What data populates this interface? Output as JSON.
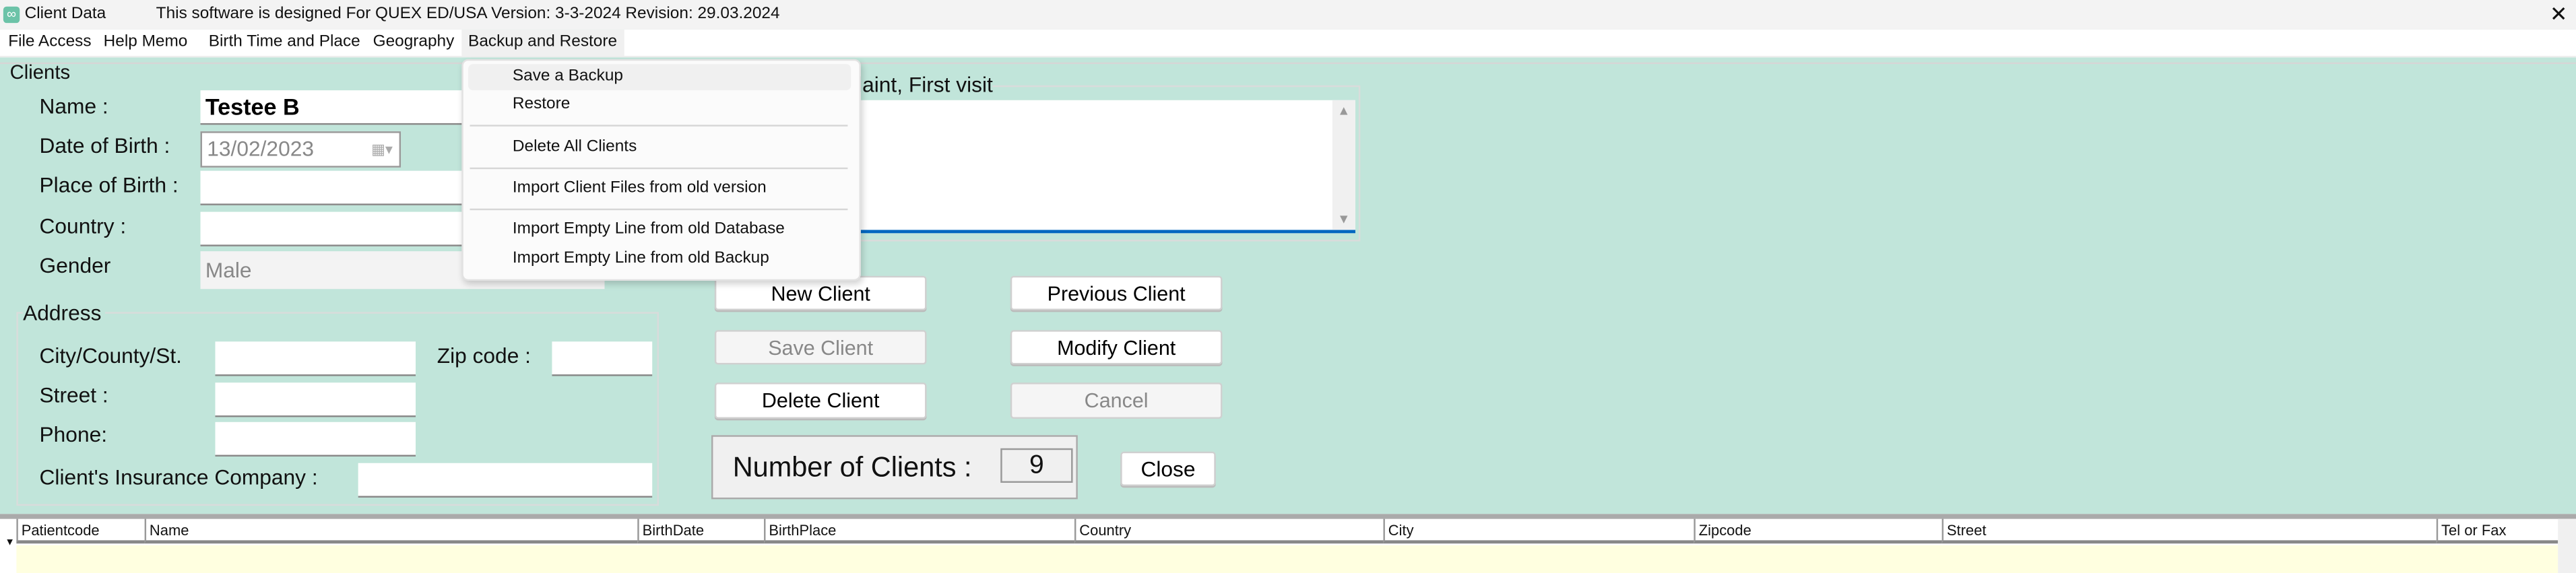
{
  "window": {
    "app_icon": "infinity-logo-icon",
    "title": "Client Data",
    "subtitle": "This software is designed For QUEX ED/USA Version: 3-3-2024 Revision: 29.03.2024",
    "close_icon": "close-icon"
  },
  "menubar": {
    "items": [
      "File Access",
      "Help Memo",
      "Birth Time and Place",
      "Geography",
      "Backup and Restore"
    ],
    "active": "Backup and Restore"
  },
  "dropdown": {
    "items": [
      "Save a Backup",
      "Restore",
      "Delete All Clients",
      "Import Client Files from old version",
      "Import Empty Line from old Database",
      "Import Empty Line from old Backup"
    ],
    "hovered": "Save a Backup"
  },
  "clients": {
    "group_label": "Clients",
    "name_label": "Name :",
    "name_value": "Testee B",
    "dob_label": "Date of Birth :",
    "dob_value": "13/02/2023",
    "pob_label": "Place of Birth :",
    "pob_value": "",
    "country_label": "Country :",
    "country_value": "",
    "gender_label": "Gender",
    "gender_value": "Male"
  },
  "address": {
    "group_label": "Address",
    "city_label": "City/County/St.",
    "city_value": "",
    "zip_label": "Zip code :",
    "zip_value": "",
    "street_label": "Street :",
    "street_value": "",
    "phone_label": "Phone:",
    "phone_value": "",
    "insurance_label": "Client's Insurance Company :",
    "insurance_value": ""
  },
  "complaint": {
    "group_label_visible": "laint, First visit",
    "value": ""
  },
  "buttons": {
    "new": "New Client",
    "previous": "Previous Client",
    "save": "Save Client",
    "modify": "Modify Client",
    "delete": "Delete Client",
    "cancel": "Cancel",
    "close": "Close"
  },
  "count": {
    "label": "Number of Clients :",
    "value": "9"
  },
  "grid": {
    "columns": [
      "Patientcode",
      "Name",
      "BirthDate",
      "BirthPlace",
      "Country",
      "City",
      "Zipcode",
      "Street",
      "Tel or Fax"
    ],
    "rows": []
  },
  "colors": {
    "panel": "#c1e5da",
    "grid_row": "#ffffe0",
    "focus_accent": "#0067c0"
  }
}
